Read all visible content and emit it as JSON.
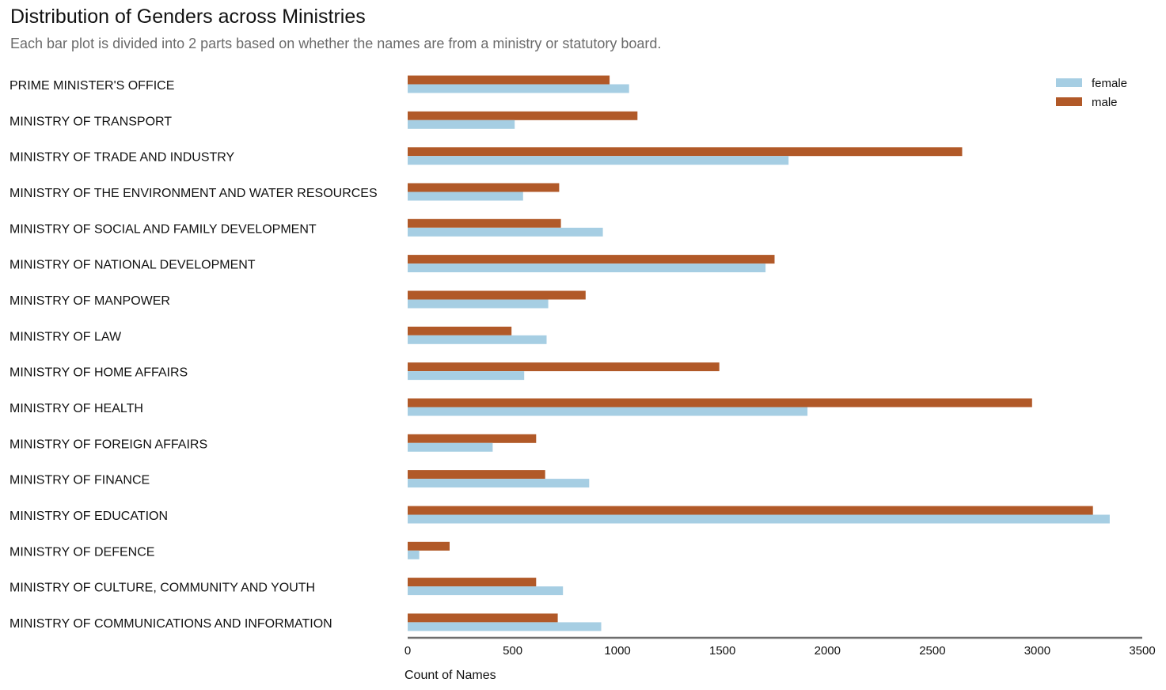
{
  "chart_data": {
    "type": "bar",
    "orientation": "horizontal",
    "title": "Distribution of Genders across Ministries",
    "subtitle": "Each bar plot is divided into 2 parts based on whether the names are from a ministry or statutory board.",
    "xlabel": "Count of Names",
    "ylabel": "",
    "xlim": [
      0,
      3500
    ],
    "xticks": [
      "0",
      "500",
      "1000",
      "1500",
      "2000",
      "2500",
      "3000",
      "3500"
    ],
    "grid": false,
    "legend_position": "top-right",
    "categories": [
      "PRIME MINISTER'S OFFICE",
      "MINISTRY OF TRANSPORT",
      "MINISTRY OF TRADE AND INDUSTRY",
      "MINISTRY OF THE ENVIRONMENT AND WATER RESOURCES",
      "MINISTRY OF SOCIAL AND FAMILY DEVELOPMENT",
      "MINISTRY OF NATIONAL DEVELOPMENT",
      "MINISTRY OF MANPOWER",
      "MINISTRY OF LAW",
      "MINISTRY OF HOME AFFAIRS",
      "MINISTRY OF HEALTH",
      "MINISTRY OF FOREIGN AFFAIRS",
      "MINISTRY OF FINANCE",
      "MINISTRY OF EDUCATION",
      "MINISTRY OF DEFENCE",
      "MINISTRY OF CULTURE, COMMUNITY AND YOUTH",
      "MINISTRY OF COMMUNICATIONS AND INFORMATION"
    ],
    "series": [
      {
        "name": "female",
        "color": "#a6cee3",
        "values": [
          1055,
          510,
          1815,
          550,
          930,
          1705,
          670,
          662,
          555,
          1905,
          405,
          865,
          3345,
          55,
          740,
          922
        ]
      },
      {
        "name": "male",
        "color": "#b15928",
        "values": [
          962,
          1095,
          2642,
          722,
          730,
          1748,
          848,
          495,
          1485,
          2975,
          612,
          655,
          3265,
          200,
          612,
          715
        ]
      }
    ]
  }
}
